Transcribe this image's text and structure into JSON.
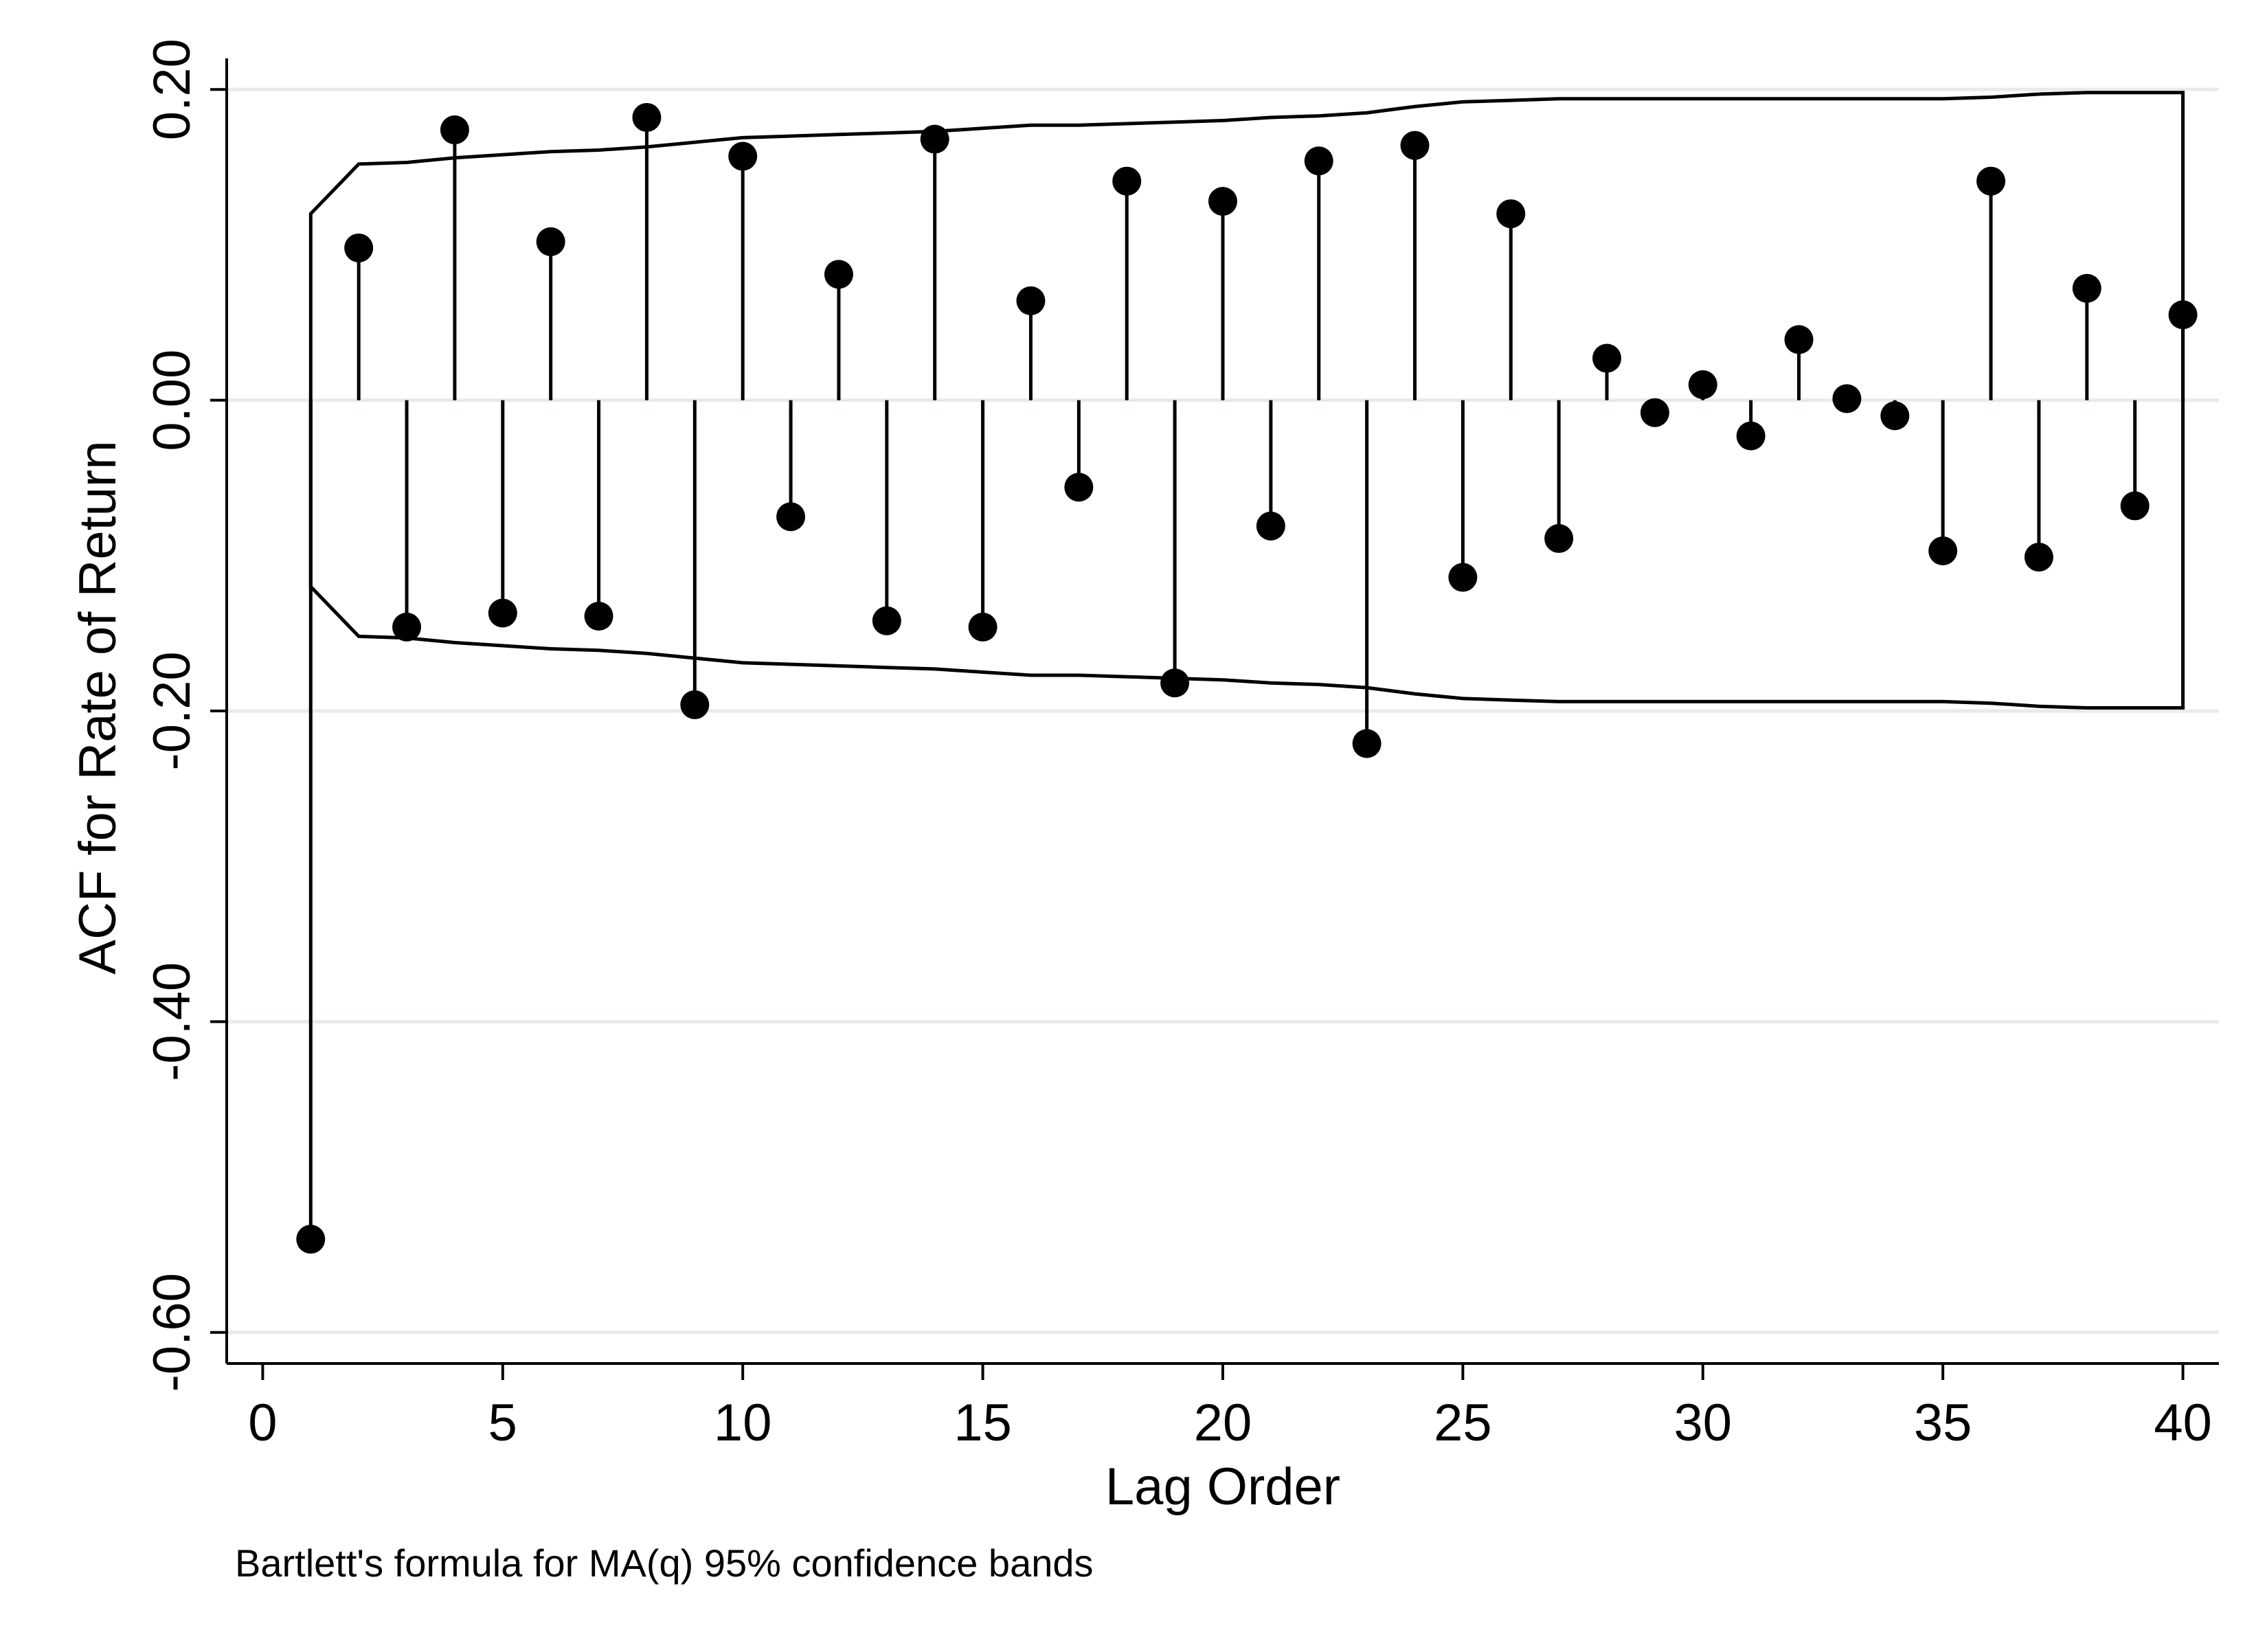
{
  "chart_data": {
    "type": "acf_stem",
    "xlabel": "Lag Order",
    "ylabel": "ACF for Rate of Return",
    "note": "Bartlett's formula for MA(q) 95% confidence bands",
    "xlim": [
      -0.75,
      40.75
    ],
    "ylim": [
      -0.62,
      0.22
    ],
    "xticks": [
      0,
      5,
      10,
      15,
      20,
      25,
      30,
      35,
      40
    ],
    "xtick_labels": [
      "0",
      "5",
      "10",
      "15",
      "20",
      "25",
      "30",
      "35",
      "40"
    ],
    "yticks": [
      0.2,
      0.0,
      -0.2,
      -0.4,
      -0.6
    ],
    "ytick_labels": [
      "0.20",
      "0.00",
      "-0.20",
      "-0.40",
      "-0.60"
    ],
    "grid": "horizontal",
    "lags": [
      1,
      2,
      3,
      4,
      5,
      6,
      7,
      8,
      9,
      10,
      11,
      12,
      13,
      14,
      15,
      16,
      17,
      18,
      19,
      20,
      21,
      22,
      23,
      24,
      25,
      26,
      27,
      28,
      29,
      30,
      31,
      32,
      33,
      34,
      35,
      36,
      37,
      38,
      39,
      40
    ],
    "acf": [
      -0.54,
      0.098,
      -0.146,
      0.174,
      -0.137,
      0.102,
      -0.139,
      0.182,
      -0.196,
      0.157,
      -0.075,
      0.081,
      -0.142,
      0.168,
      -0.146,
      0.064,
      -0.056,
      0.141,
      -0.182,
      0.128,
      -0.081,
      0.154,
      -0.221,
      0.164,
      -0.114,
      0.12,
      -0.089,
      0.027,
      -0.008,
      0.01,
      -0.023,
      0.039,
      0.001,
      -0.01,
      -0.097,
      0.141,
      -0.101,
      0.072,
      -0.068,
      0.055
    ],
    "conf_band": [
      0.12,
      0.152,
      0.153,
      0.156,
      0.158,
      0.16,
      0.161,
      0.163,
      0.166,
      0.169,
      0.17,
      0.171,
      0.172,
      0.173,
      0.175,
      0.177,
      0.177,
      0.178,
      0.179,
      0.18,
      0.182,
      0.183,
      0.185,
      0.189,
      0.192,
      0.193,
      0.194,
      0.194,
      0.194,
      0.194,
      0.194,
      0.194,
      0.194,
      0.194,
      0.194,
      0.195,
      0.197,
      0.198,
      0.198,
      0.198
    ],
    "colors": {
      "marker": "#000000",
      "grid": "#e6ebeb",
      "axis": "#000000"
    }
  }
}
